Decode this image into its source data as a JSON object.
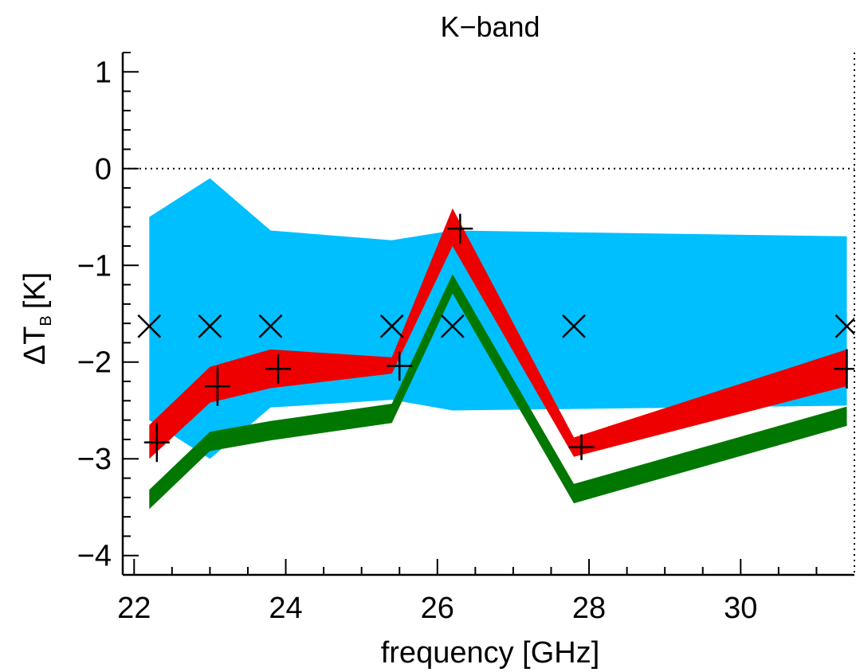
{
  "chart_data": {
    "type": "line",
    "title": "K−band",
    "xlabel": "frequency [GHz]",
    "ylabel": "ΔT",
    "ylabel_sub": "B",
    "ylabel_unit": "[K]",
    "xlim": [
      21.85,
      31.5
    ],
    "ylim": [
      -4.2,
      1.2
    ],
    "x_ticks": [
      22,
      24,
      26,
      28,
      30
    ],
    "x_tick_labels": [
      "22",
      "24",
      "26",
      "28",
      "30"
    ],
    "y_ticks": [
      1,
      0,
      -1,
      -2,
      -3,
      -4
    ],
    "y_tick_labels": [
      "1",
      "0",
      "−1",
      "−2",
      "−3",
      "−4"
    ],
    "reference_line": {
      "y": 0,
      "style": "dotted"
    },
    "series": [
      {
        "kind": "band",
        "color": "#00bfff",
        "x": [
          22.2,
          23.0,
          23.8,
          25.4,
          26.2,
          31.4
        ],
        "upper": [
          -0.5,
          -0.1,
          -0.64,
          -0.74,
          -0.64,
          -0.7
        ],
        "lower": [
          -2.6,
          -3.0,
          -2.47,
          -2.39,
          -2.5,
          -2.45
        ]
      },
      {
        "kind": "band",
        "color": "#007700",
        "x": [
          22.2,
          23.0,
          23.8,
          25.4,
          26.2,
          27.8,
          31.4
        ],
        "upper": [
          -3.32,
          -2.72,
          -2.61,
          -2.43,
          -1.09,
          -3.26,
          -2.46
        ],
        "lower": [
          -3.52,
          -2.92,
          -2.81,
          -2.63,
          -1.29,
          -3.46,
          -2.66
        ]
      },
      {
        "kind": "band",
        "color": "#ee0000",
        "x": [
          22.2,
          23.0,
          23.8,
          25.4,
          26.2,
          27.8,
          31.4
        ],
        "upper": [
          -2.65,
          -2.05,
          -1.87,
          -1.95,
          -0.41,
          -2.78,
          -1.87
        ],
        "lower": [
          -3.0,
          -2.42,
          -2.27,
          -2.12,
          -0.8,
          -2.98,
          -2.25
        ]
      },
      {
        "kind": "points",
        "marker": "plus",
        "x": [
          22.3,
          23.1,
          23.9,
          25.5,
          26.3,
          27.9,
          31.4
        ],
        "y": [
          -2.83,
          -2.25,
          -2.07,
          -2.04,
          -0.62,
          -2.88,
          -2.07
        ],
        "yerr": [
          0.17,
          0.17,
          0.12,
          0.12,
          0.12,
          0.1,
          0.17
        ]
      },
      {
        "kind": "points",
        "marker": "cross",
        "x": [
          22.2,
          23.0,
          23.8,
          25.4,
          26.2,
          27.8,
          31.4
        ],
        "y": [
          -1.63,
          -1.63,
          -1.63,
          -1.63,
          -1.63,
          -1.63,
          -1.63
        ]
      }
    ]
  }
}
